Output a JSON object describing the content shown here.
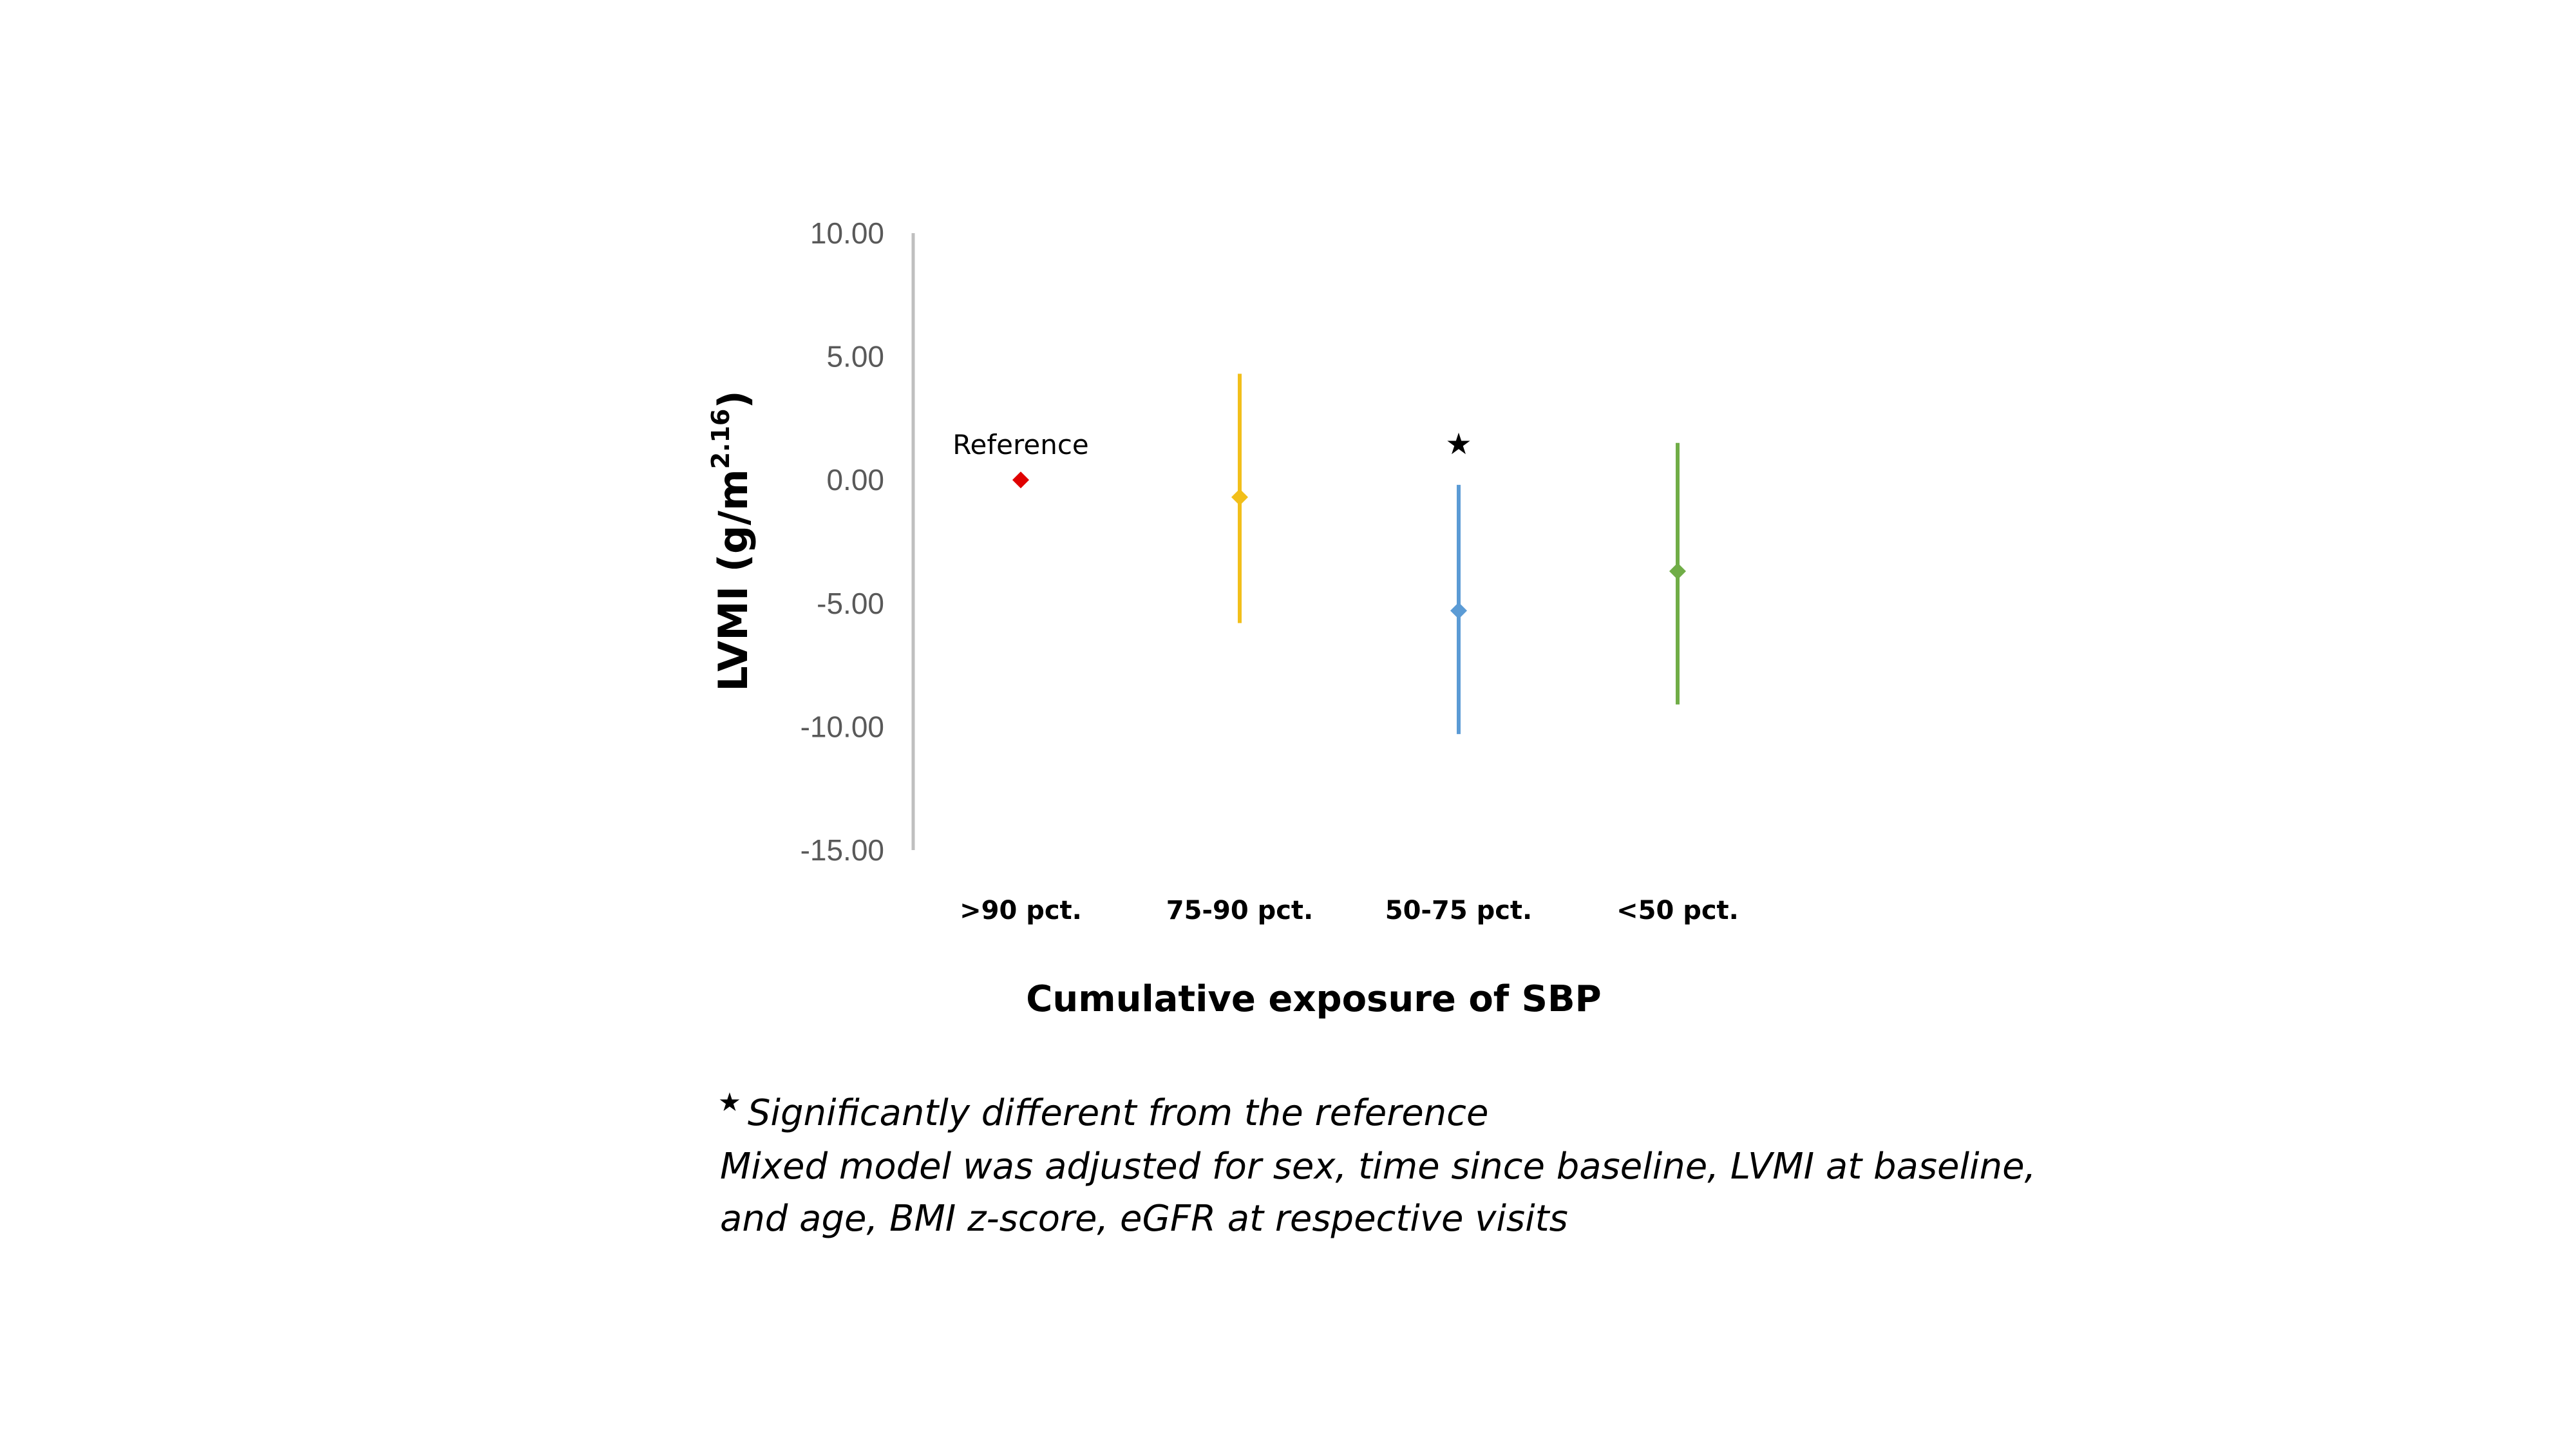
{
  "chart_data": {
    "type": "scatter",
    "subtype": "point-with-error-bars",
    "categories": [
      ">90 pct.",
      "75-90 pct.",
      "50-75 pct.",
      "<50 pct."
    ],
    "points": [
      {
        "category": ">90 pct.",
        "estimate": 0.0,
        "lower": null,
        "upper": null,
        "color": "#E00000",
        "annotation": "Reference"
      },
      {
        "category": "75-90 pct.",
        "estimate": -0.7,
        "lower": -5.8,
        "upper": 4.3,
        "color": "#F2BF1A",
        "annotation": ""
      },
      {
        "category": "50-75 pct.",
        "estimate": -5.3,
        "lower": -10.3,
        "upper": -0.2,
        "color": "#5B9BD5",
        "annotation": "★"
      },
      {
        "category": "<50 pct.",
        "estimate": -3.7,
        "lower": -9.1,
        "upper": 1.5,
        "color": "#70AD47",
        "annotation": ""
      }
    ],
    "yticks": [
      "10.00",
      "5.00",
      "0.00",
      "-5.00",
      "-10.00",
      "-15.00"
    ],
    "ylim": [
      -15,
      10
    ],
    "ylabel": "LVMI (g/m",
    "ylabel_sup": "2.16",
    "ylabel_close": ")",
    "xlabel": "Cumulative exposure of SBP",
    "grid": false,
    "legend": "none"
  },
  "notes": {
    "star": "★",
    "significance": "Significantly different from the reference",
    "model_line1": "Mixed model was adjusted for sex, time since baseline, LVMI at baseline,",
    "model_line2": "and age, BMI z-score, eGFR at respective visits"
  }
}
